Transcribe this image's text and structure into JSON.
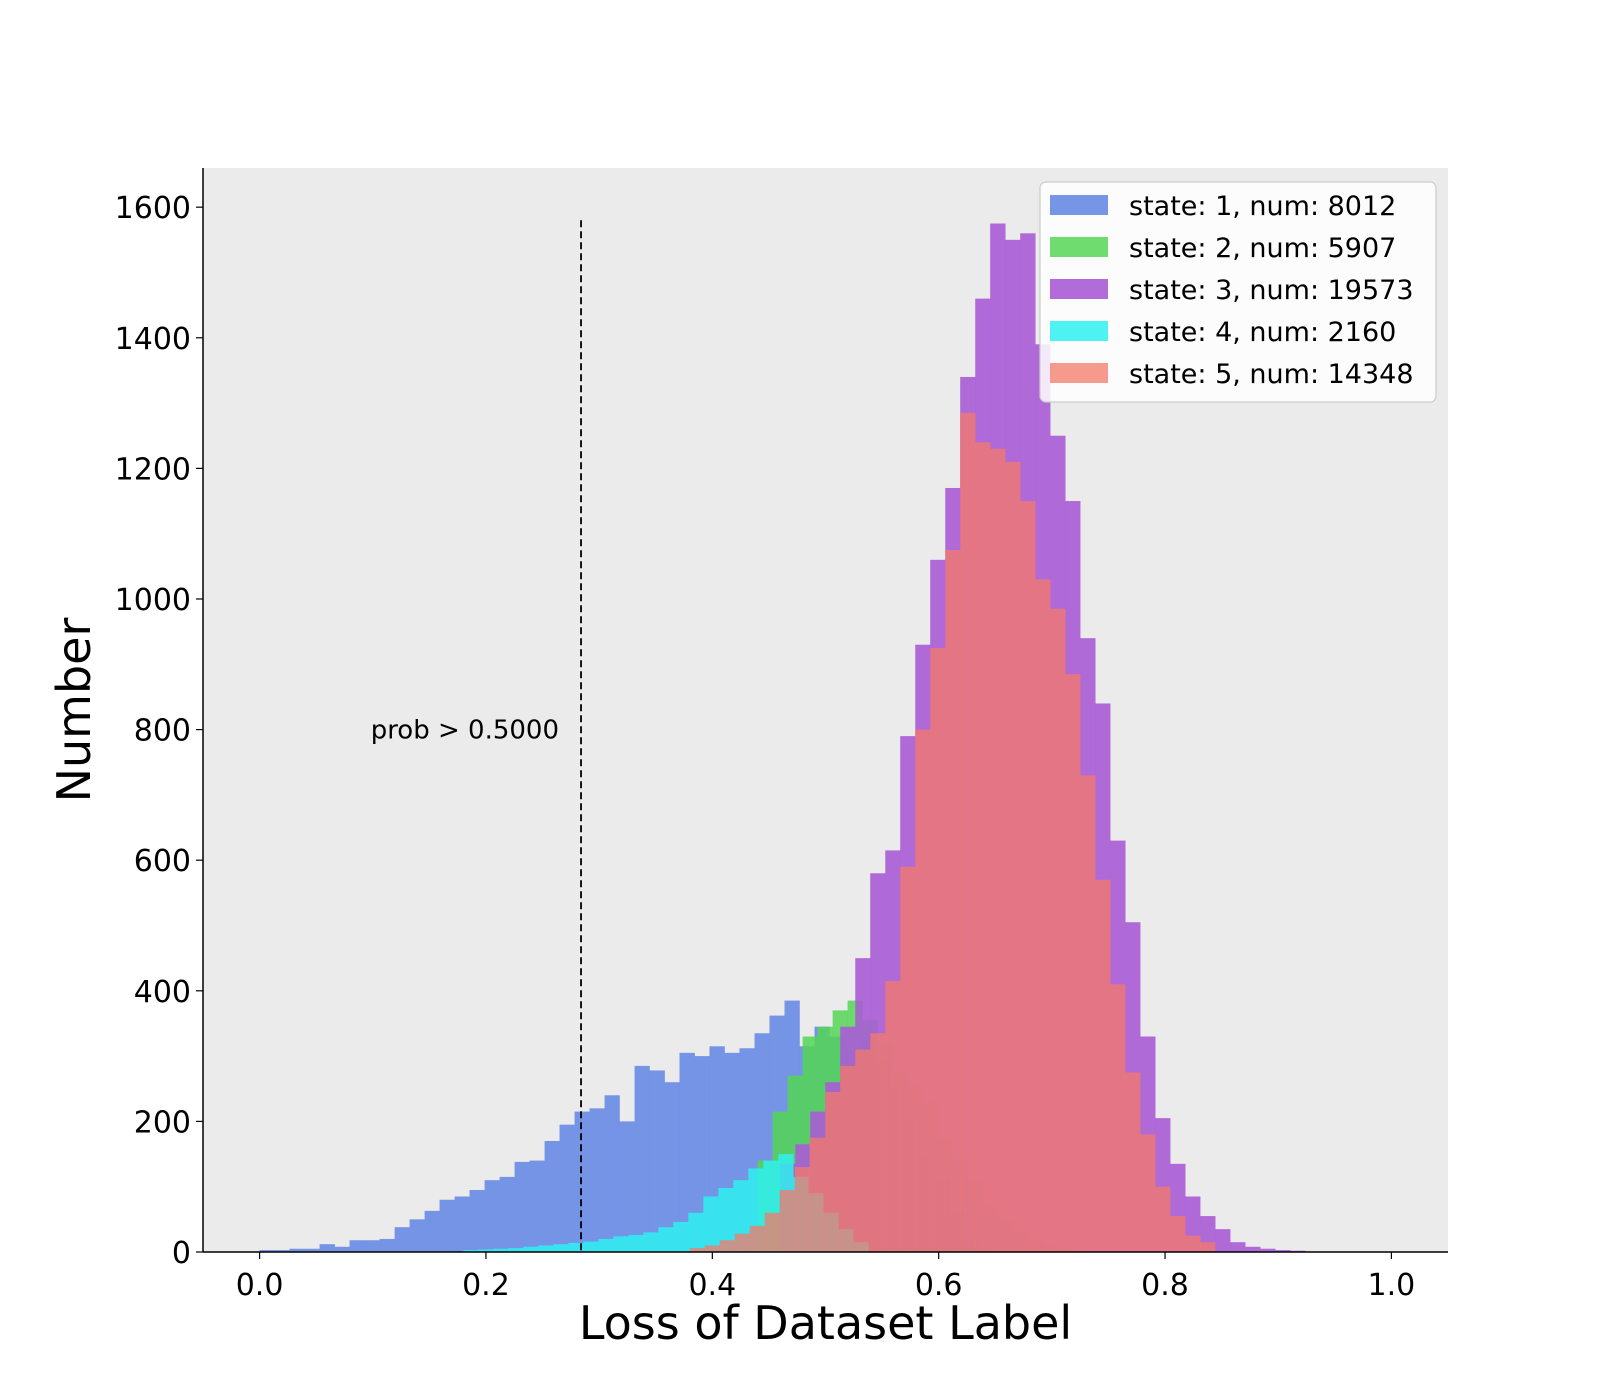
{
  "chart_data": {
    "type": "histogram",
    "title": "",
    "xlabel": "Loss of Dataset Label",
    "ylabel": "Number",
    "xlim": [
      -0.05,
      1.05
    ],
    "ylim": [
      0,
      1660
    ],
    "xticks": [
      0.0,
      0.2,
      0.4,
      0.6,
      0.8,
      1.0
    ],
    "xtick_labels": [
      "0.0",
      "0.2",
      "0.4",
      "0.6",
      "0.8",
      "1.0"
    ],
    "yticks": [
      0,
      200,
      400,
      600,
      800,
      1000,
      1200,
      1400,
      1600
    ],
    "ytick_labels": [
      "0",
      "200",
      "400",
      "600",
      "800",
      "1000",
      "1200",
      "1400",
      "1600"
    ],
    "grid": false,
    "background": "#ebebeb",
    "legend_position": "top-right",
    "annotation": {
      "text": "prob > 0.5000",
      "x": 0.284,
      "y_top": 1580,
      "line_style": "dashed",
      "color": "#000000"
    },
    "series": [
      {
        "name": "state: 1, num: 8012",
        "color": "#6f8fe5",
        "opacity": 0.95,
        "bins": [
          [
            0.0,
            0.0133,
            3
          ],
          [
            0.0133,
            0.0265,
            3
          ],
          [
            0.0265,
            0.0398,
            5
          ],
          [
            0.0398,
            0.053,
            5
          ],
          [
            0.053,
            0.0663,
            12
          ],
          [
            0.0663,
            0.0795,
            8
          ],
          [
            0.0795,
            0.0928,
            18
          ],
          [
            0.0928,
            0.106,
            18
          ],
          [
            0.106,
            0.1193,
            20
          ],
          [
            0.1193,
            0.1325,
            38
          ],
          [
            0.1325,
            0.1458,
            50
          ],
          [
            0.1458,
            0.159,
            63
          ],
          [
            0.159,
            0.1723,
            80
          ],
          [
            0.1723,
            0.1855,
            85
          ],
          [
            0.1855,
            0.1988,
            95
          ],
          [
            0.1988,
            0.212,
            110
          ],
          [
            0.212,
            0.2253,
            115
          ],
          [
            0.2253,
            0.2385,
            138
          ],
          [
            0.2385,
            0.2518,
            140
          ],
          [
            0.2518,
            0.265,
            170
          ],
          [
            0.265,
            0.2783,
            195
          ],
          [
            0.2783,
            0.2915,
            215
          ],
          [
            0.2915,
            0.3048,
            220
          ],
          [
            0.3048,
            0.318,
            240
          ],
          [
            0.318,
            0.3313,
            200
          ],
          [
            0.3313,
            0.3445,
            285
          ],
          [
            0.3445,
            0.3578,
            278
          ],
          [
            0.3578,
            0.371,
            260
          ],
          [
            0.371,
            0.3843,
            305
          ],
          [
            0.3843,
            0.3975,
            300
          ],
          [
            0.3975,
            0.4108,
            315
          ],
          [
            0.4108,
            0.424,
            305
          ],
          [
            0.424,
            0.4373,
            312
          ],
          [
            0.4373,
            0.4505,
            335
          ],
          [
            0.4505,
            0.4638,
            362
          ],
          [
            0.4638,
            0.477,
            385
          ],
          [
            0.477,
            0.4903,
            315
          ],
          [
            0.4903,
            0.5035,
            345
          ],
          [
            0.5035,
            0.5168,
            330
          ],
          [
            0.5168,
            0.53,
            310
          ],
          [
            0.53,
            0.5433,
            330
          ],
          [
            0.5433,
            0.5565,
            290
          ],
          [
            0.5565,
            0.5698,
            250
          ],
          [
            0.5698,
            0.583,
            200
          ],
          [
            0.583,
            0.5963,
            150
          ],
          [
            0.5963,
            0.6095,
            110
          ],
          [
            0.6095,
            0.6228,
            60
          ],
          [
            0.6228,
            0.636,
            20
          ]
        ]
      },
      {
        "name": "state: 2, num: 5907",
        "color": "#55d655",
        "opacity": 0.85,
        "bins": [
          [
            0.44,
            0.4533,
            140
          ],
          [
            0.4533,
            0.4665,
            215
          ],
          [
            0.4665,
            0.4798,
            270
          ],
          [
            0.4798,
            0.493,
            330
          ],
          [
            0.493,
            0.5063,
            345
          ],
          [
            0.5063,
            0.5195,
            370
          ],
          [
            0.5195,
            0.5328,
            385
          ],
          [
            0.5328,
            0.546,
            355
          ],
          [
            0.546,
            0.5593,
            320
          ],
          [
            0.5593,
            0.5725,
            275
          ],
          [
            0.5725,
            0.5858,
            255
          ],
          [
            0.5858,
            0.599,
            230
          ],
          [
            0.599,
            0.6123,
            175
          ],
          [
            0.6123,
            0.6255,
            140
          ],
          [
            0.6255,
            0.6388,
            112
          ],
          [
            0.6388,
            0.652,
            70
          ],
          [
            0.652,
            0.6653,
            48
          ],
          [
            0.6653,
            0.6785,
            32
          ],
          [
            0.6785,
            0.6918,
            20
          ],
          [
            0.6918,
            0.705,
            10
          ],
          [
            0.705,
            0.7183,
            5
          ]
        ]
      },
      {
        "name": "state: 3, num: 19573",
        "color": "#a95cd6",
        "opacity": 0.9,
        "bins": [
          [
            0.46,
            0.4733,
            135
          ],
          [
            0.4733,
            0.4865,
            165
          ],
          [
            0.4865,
            0.4998,
            215
          ],
          [
            0.4998,
            0.513,
            260
          ],
          [
            0.513,
            0.5263,
            345
          ],
          [
            0.5263,
            0.5395,
            450
          ],
          [
            0.5395,
            0.5528,
            580
          ],
          [
            0.5528,
            0.566,
            615
          ],
          [
            0.566,
            0.5793,
            790
          ],
          [
            0.5793,
            0.5925,
            930
          ],
          [
            0.5925,
            0.6058,
            1060
          ],
          [
            0.6058,
            0.619,
            1170
          ],
          [
            0.619,
            0.6323,
            1340
          ],
          [
            0.6323,
            0.6455,
            1460
          ],
          [
            0.6455,
            0.6588,
            1575
          ],
          [
            0.6588,
            0.672,
            1550
          ],
          [
            0.672,
            0.6853,
            1560
          ],
          [
            0.6853,
            0.6985,
            1390
          ],
          [
            0.6985,
            0.7118,
            1250
          ],
          [
            0.7118,
            0.725,
            1150
          ],
          [
            0.725,
            0.7383,
            940
          ],
          [
            0.7383,
            0.7515,
            840
          ],
          [
            0.7515,
            0.7648,
            630
          ],
          [
            0.7648,
            0.778,
            505
          ],
          [
            0.778,
            0.7913,
            330
          ],
          [
            0.7913,
            0.8045,
            205
          ],
          [
            0.8045,
            0.8178,
            135
          ],
          [
            0.8178,
            0.831,
            85
          ],
          [
            0.831,
            0.8443,
            55
          ],
          [
            0.8443,
            0.8575,
            35
          ],
          [
            0.8575,
            0.8708,
            15
          ],
          [
            0.8708,
            0.884,
            8
          ],
          [
            0.884,
            0.8973,
            5
          ],
          [
            0.8973,
            0.9105,
            3
          ],
          [
            0.9105,
            0.9238,
            2
          ]
        ]
      },
      {
        "name": "state: 4, num: 2160",
        "color": "#2ef0f0",
        "opacity": 0.85,
        "bins": [
          [
            0.18,
            0.1933,
            3
          ],
          [
            0.1933,
            0.2065,
            4
          ],
          [
            0.2065,
            0.2198,
            5
          ],
          [
            0.2198,
            0.233,
            6
          ],
          [
            0.233,
            0.2463,
            8
          ],
          [
            0.2463,
            0.2595,
            10
          ],
          [
            0.2595,
            0.2728,
            12
          ],
          [
            0.2728,
            0.286,
            14
          ],
          [
            0.286,
            0.2993,
            16
          ],
          [
            0.2993,
            0.3125,
            20
          ],
          [
            0.3125,
            0.3258,
            24
          ],
          [
            0.3258,
            0.339,
            26
          ],
          [
            0.339,
            0.3523,
            30
          ],
          [
            0.3523,
            0.3655,
            38
          ],
          [
            0.3655,
            0.3788,
            46
          ],
          [
            0.3788,
            0.392,
            60
          ],
          [
            0.392,
            0.4053,
            85
          ],
          [
            0.4053,
            0.4185,
            98
          ],
          [
            0.4185,
            0.4318,
            110
          ],
          [
            0.4318,
            0.445,
            128
          ],
          [
            0.445,
            0.4583,
            140
          ],
          [
            0.4583,
            0.4715,
            150
          ],
          [
            0.4715,
            0.4848,
            115
          ],
          [
            0.4848,
            0.498,
            90
          ],
          [
            0.498,
            0.5113,
            60
          ],
          [
            0.5113,
            0.5245,
            35
          ],
          [
            0.5245,
            0.5378,
            15
          ]
        ]
      },
      {
        "name": "state: 5, num: 14348",
        "color": "#f57a6a",
        "opacity": 0.75,
        "bins": [
          [
            0.38,
            0.3933,
            6
          ],
          [
            0.3933,
            0.4065,
            10
          ],
          [
            0.4065,
            0.4198,
            18
          ],
          [
            0.4198,
            0.433,
            28
          ],
          [
            0.433,
            0.4463,
            40
          ],
          [
            0.4463,
            0.4595,
            60
          ],
          [
            0.4595,
            0.4728,
            95
          ],
          [
            0.4728,
            0.486,
            130
          ],
          [
            0.486,
            0.4998,
            175
          ],
          [
            0.4998,
            0.513,
            245
          ],
          [
            0.513,
            0.5263,
            285
          ],
          [
            0.5263,
            0.5395,
            310
          ],
          [
            0.5395,
            0.5528,
            335
          ],
          [
            0.5528,
            0.566,
            415
          ],
          [
            0.566,
            0.5793,
            590
          ],
          [
            0.5793,
            0.5925,
            800
          ],
          [
            0.5925,
            0.6058,
            925
          ],
          [
            0.6058,
            0.619,
            1075
          ],
          [
            0.619,
            0.6323,
            1285
          ],
          [
            0.6323,
            0.6455,
            1240
          ],
          [
            0.6455,
            0.6588,
            1230
          ],
          [
            0.6588,
            0.672,
            1210
          ],
          [
            0.672,
            0.6853,
            1150
          ],
          [
            0.6853,
            0.6985,
            1030
          ],
          [
            0.6985,
            0.7118,
            985
          ],
          [
            0.7118,
            0.725,
            885
          ],
          [
            0.725,
            0.7383,
            730
          ],
          [
            0.7383,
            0.7515,
            570
          ],
          [
            0.7515,
            0.7648,
            410
          ],
          [
            0.7648,
            0.778,
            275
          ],
          [
            0.778,
            0.7913,
            180
          ],
          [
            0.7913,
            0.8045,
            100
          ],
          [
            0.8045,
            0.8178,
            55
          ],
          [
            0.8178,
            0.831,
            25
          ],
          [
            0.831,
            0.8443,
            15
          ]
        ]
      }
    ]
  }
}
